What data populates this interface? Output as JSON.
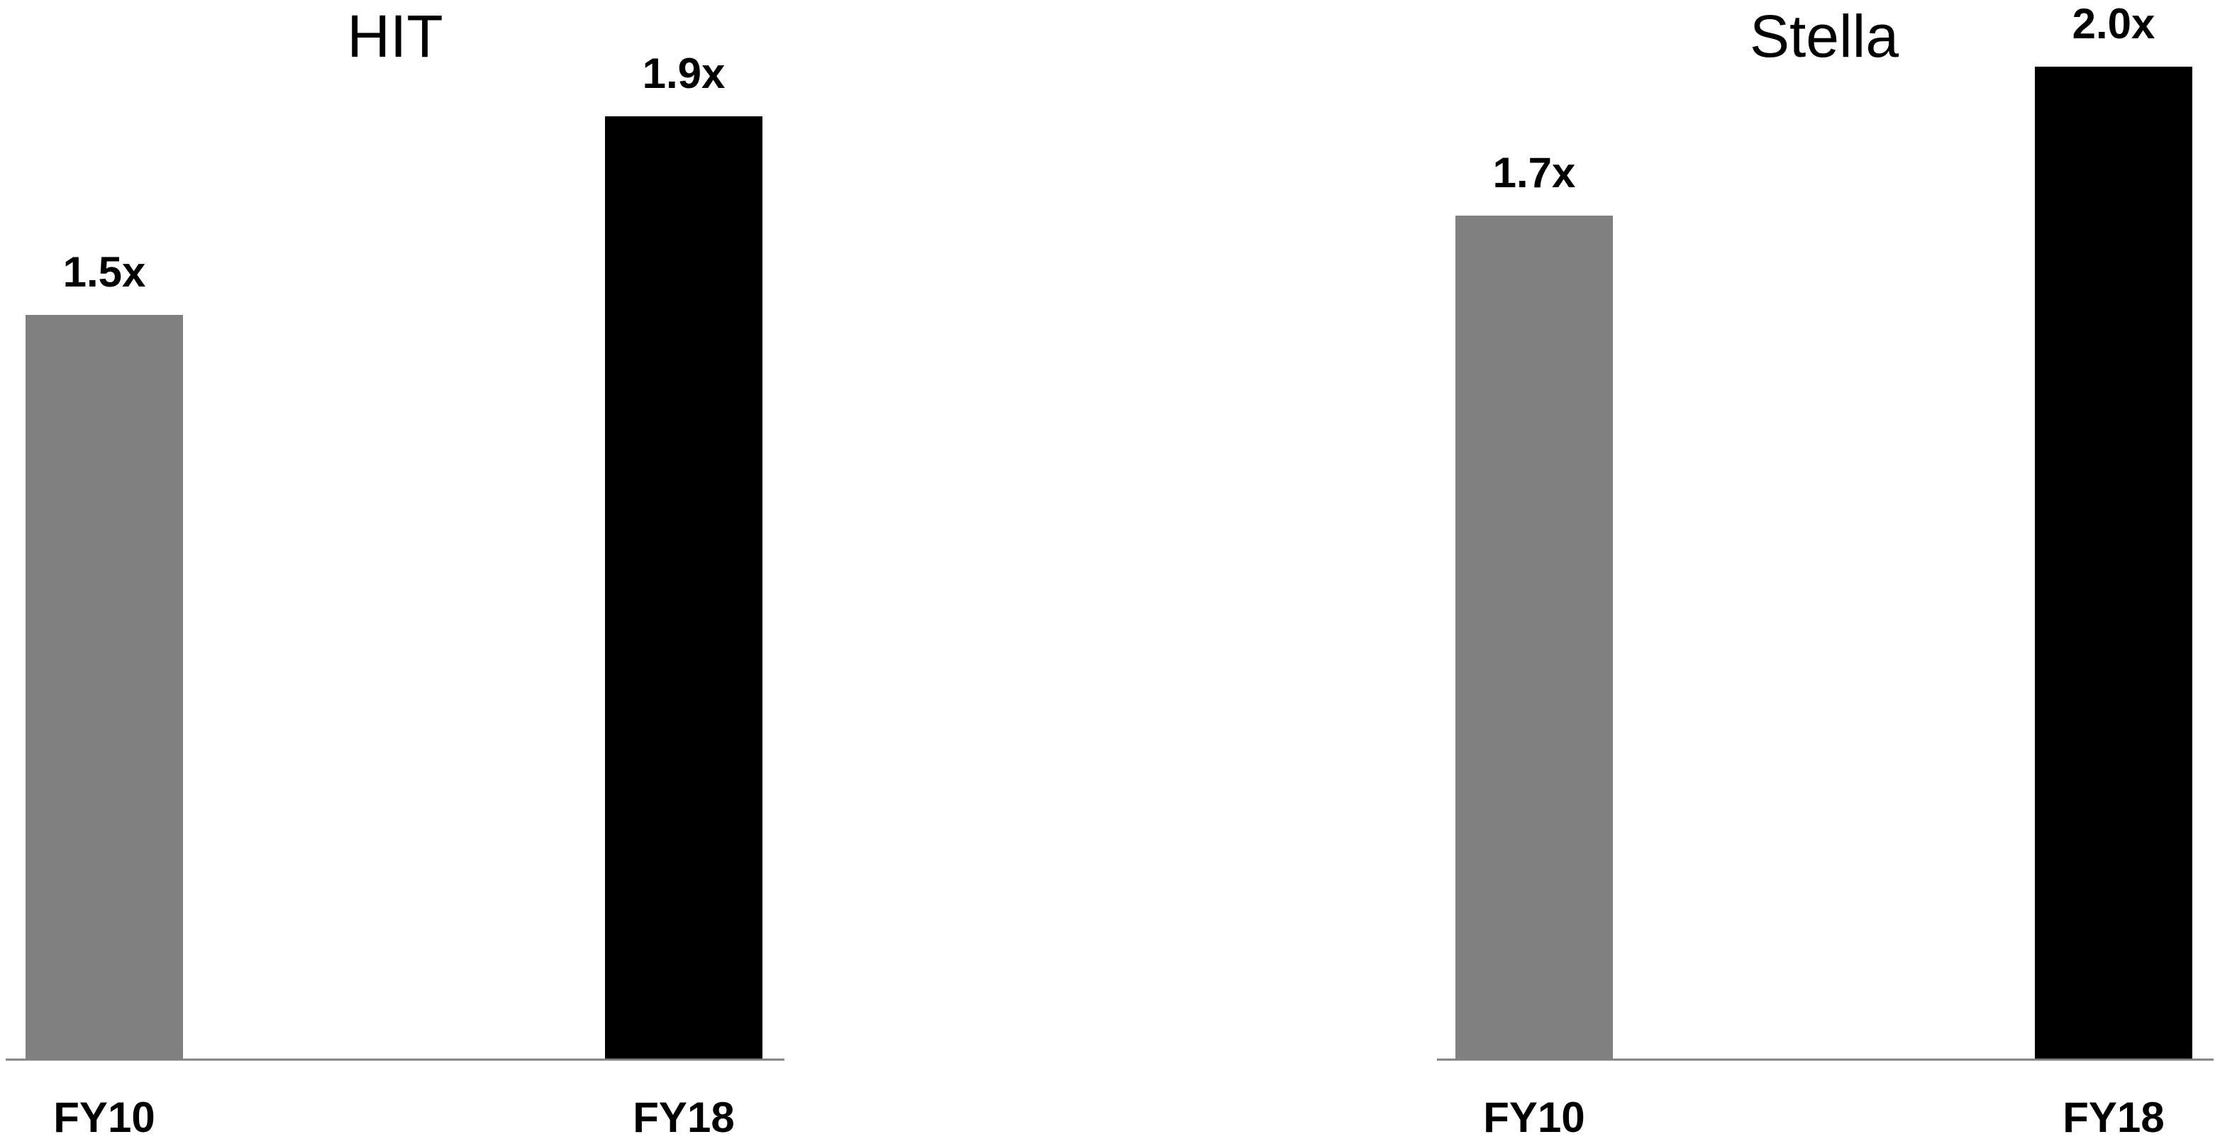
{
  "chart_data": [
    {
      "type": "bar",
      "title": "HIT",
      "categories": [
        "FY10",
        "FY18"
      ],
      "values": [
        1.5,
        1.9
      ],
      "value_labels": [
        "1.5x",
        "1.9x"
      ],
      "bar_colors": [
        "#808080",
        "#000000"
      ],
      "ylim": [
        0,
        2.1
      ],
      "grid": false,
      "xlabel": "",
      "ylabel": ""
    },
    {
      "type": "bar",
      "title": "Stella",
      "categories": [
        "FY10",
        "FY18"
      ],
      "values": [
        1.7,
        2.0
      ],
      "value_labels": [
        "1.7x",
        "2.0x"
      ],
      "bar_colors": [
        "#808080",
        "#000000"
      ],
      "ylim": [
        0,
        2.1
      ],
      "grid": false,
      "xlabel": "",
      "ylabel": ""
    }
  ]
}
